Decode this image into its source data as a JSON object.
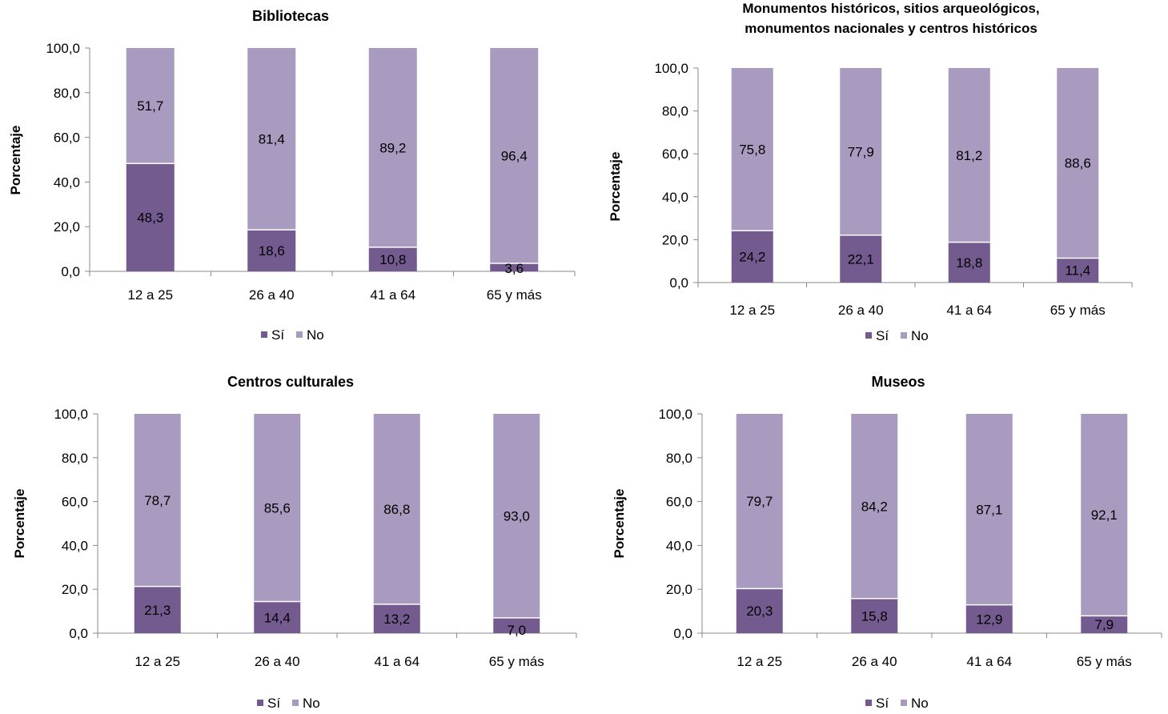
{
  "colors": {
    "si": "#735A8F",
    "no": "#A99BBF",
    "axis": "#888888",
    "text": "#000000",
    "divider": "#ffffff"
  },
  "chart_data": [
    {
      "type": "bar",
      "stacked": true,
      "title": "Bibliotecas",
      "ylabel": "Porcentaje",
      "xlabel": "",
      "ylim": [
        0,
        100
      ],
      "yticks": [
        "0,0",
        "20,0",
        "40,0",
        "60,0",
        "80,0",
        "100,0"
      ],
      "categories": [
        "12 a 25",
        "26 a 40",
        "41 a 64",
        "65 y más"
      ],
      "series": [
        {
          "name": "Sí",
          "values": [
            48.3,
            18.6,
            10.8,
            3.6
          ],
          "labels": [
            "48,3",
            "18,6",
            "10,8",
            "3,6"
          ]
        },
        {
          "name": "No",
          "values": [
            51.7,
            81.4,
            89.2,
            96.4
          ],
          "labels": [
            "51,7",
            "81,4",
            "89,2",
            "96,4"
          ]
        }
      ],
      "legend": "bottom",
      "grid": false
    },
    {
      "type": "bar",
      "stacked": true,
      "title": "Monumentos históricos, sitios arqueológicos,",
      "title_line2": "monumentos nacionales y centros históricos",
      "ylabel": "Porcentaje",
      "xlabel": "",
      "ylim": [
        0,
        100
      ],
      "yticks": [
        "0,0",
        "20,0",
        "40,0",
        "60,0",
        "80,0",
        "100,0"
      ],
      "categories": [
        "12 a 25",
        "26 a 40",
        "41 a 64",
        "65 y más"
      ],
      "series": [
        {
          "name": "Sí",
          "values": [
            24.2,
            22.1,
            18.8,
            11.4
          ],
          "labels": [
            "24,2",
            "22,1",
            "18,8",
            "11,4"
          ]
        },
        {
          "name": "No",
          "values": [
            75.8,
            77.9,
            81.2,
            88.6
          ],
          "labels": [
            "75,8",
            "77,9",
            "81,2",
            "88,6"
          ]
        }
      ],
      "legend": "bottom",
      "grid": false
    },
    {
      "type": "bar",
      "stacked": true,
      "title": "Centros culturales",
      "ylabel": "Porcentaje",
      "xlabel": "",
      "ylim": [
        0,
        100
      ],
      "yticks": [
        "0,0",
        "20,0",
        "40,0",
        "60,0",
        "80,0",
        "100,0"
      ],
      "categories": [
        "12 a 25",
        "26 a 40",
        "41 a 64",
        "65 y más"
      ],
      "series": [
        {
          "name": "Sí",
          "values": [
            21.3,
            14.4,
            13.2,
            7.0
          ],
          "labels": [
            "21,3",
            "14,4",
            "13,2",
            "7,0"
          ]
        },
        {
          "name": "No",
          "values": [
            78.7,
            85.6,
            86.8,
            93.0
          ],
          "labels": [
            "78,7",
            "85,6",
            "86,8",
            "93,0"
          ]
        }
      ],
      "legend": "bottom",
      "grid": false
    },
    {
      "type": "bar",
      "stacked": true,
      "title": "Museos",
      "ylabel": "Porcentaje",
      "xlabel": "",
      "ylim": [
        0,
        100
      ],
      "yticks": [
        "0,0",
        "20,0",
        "40,0",
        "60,0",
        "80,0",
        "100,0"
      ],
      "categories": [
        "12 a 25",
        "26 a 40",
        "41 a 64",
        "65 y más"
      ],
      "series": [
        {
          "name": "Sí",
          "values": [
            20.3,
            15.8,
            12.9,
            7.9
          ],
          "labels": [
            "20,3",
            "15,8",
            "12,9",
            "7,9"
          ]
        },
        {
          "name": "No",
          "values": [
            79.7,
            84.2,
            87.1,
            92.1
          ],
          "labels": [
            "79,7",
            "84,2",
            "87,1",
            "92,1"
          ]
        }
      ],
      "legend": "bottom",
      "grid": false
    }
  ]
}
